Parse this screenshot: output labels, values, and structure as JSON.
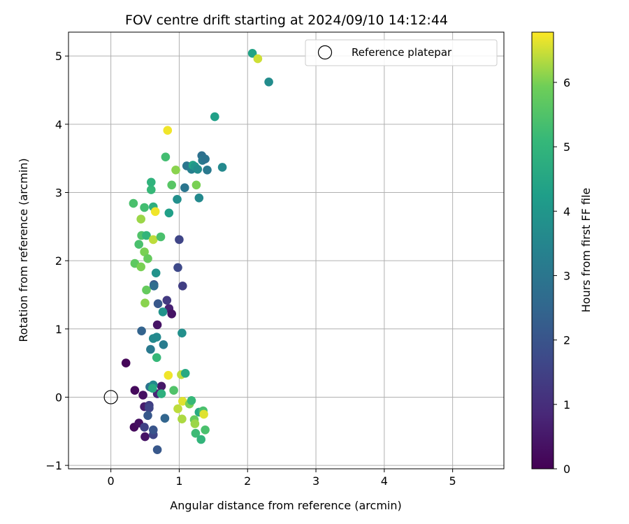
{
  "chart_data": {
    "type": "scatter",
    "title": "FOV centre drift starting at 2024/09/10 14:12:44",
    "xlabel": "Angular distance from reference (arcmin)",
    "ylabel": "Rotation from reference (arcmin)",
    "xlim": [
      -0.62,
      5.75
    ],
    "ylim": [
      -1.05,
      5.35
    ],
    "xticks": [
      0,
      1,
      2,
      3,
      4,
      5
    ],
    "yticks": [
      -1,
      0,
      1,
      2,
      3,
      4,
      5
    ],
    "grid": true,
    "legend": {
      "placement": "top-right",
      "entries": [
        "Reference platepar"
      ]
    },
    "reference": {
      "x": 0,
      "y": 0
    },
    "colorbar": {
      "label": "Hours from first FF file",
      "range": [
        0,
        6.78
      ],
      "ticks": [
        0,
        1,
        2,
        3,
        4,
        5,
        6
      ],
      "colormap": "viridis"
    },
    "points": [
      {
        "x": 0.22,
        "y": 0.5,
        "h": 0.1
      },
      {
        "x": 0.35,
        "y": 0.1,
        "h": 0.2
      },
      {
        "x": 0.47,
        "y": 0.03,
        "h": 0.3
      },
      {
        "x": 0.49,
        "y": -0.14,
        "h": 0.6
      },
      {
        "x": 0.34,
        "y": -0.44,
        "h": 0.2
      },
      {
        "x": 0.41,
        "y": -0.38,
        "h": 0.3
      },
      {
        "x": 0.5,
        "y": -0.58,
        "h": 0.4
      },
      {
        "x": 0.49,
        "y": -0.44,
        "h": 1.5
      },
      {
        "x": 0.56,
        "y": -0.12,
        "h": 1.4
      },
      {
        "x": 0.56,
        "y": -0.16,
        "h": 1.6
      },
      {
        "x": 0.54,
        "y": -0.27,
        "h": 2.1
      },
      {
        "x": 0.62,
        "y": -0.55,
        "h": 1.6
      },
      {
        "x": 0.62,
        "y": -0.48,
        "h": 2.0
      },
      {
        "x": 0.68,
        "y": -0.77,
        "h": 2.1
      },
      {
        "x": 0.79,
        "y": -0.31,
        "h": 2.5
      },
      {
        "x": 0.68,
        "y": 0.05,
        "h": 0.8
      },
      {
        "x": 0.74,
        "y": 0.16,
        "h": 0.5
      },
      {
        "x": 0.57,
        "y": 0.15,
        "h": 2.9
      },
      {
        "x": 0.62,
        "y": 0.18,
        "h": 3.6
      },
      {
        "x": 0.61,
        "y": 0.13,
        "h": 4.6
      },
      {
        "x": 0.74,
        "y": 0.05,
        "h": 4.8
      },
      {
        "x": 0.84,
        "y": 0.32,
        "h": 6.7
      },
      {
        "x": 0.92,
        "y": 0.1,
        "h": 5.5
      },
      {
        "x": 1.03,
        "y": 0.33,
        "h": 6.4
      },
      {
        "x": 1.09,
        "y": 0.35,
        "h": 4.6
      },
      {
        "x": 0.98,
        "y": -0.17,
        "h": 6.4
      },
      {
        "x": 1.05,
        "y": -0.06,
        "h": 6.6
      },
      {
        "x": 1.04,
        "y": -0.32,
        "h": 6.3
      },
      {
        "x": 1.15,
        "y": -0.1,
        "h": 6.0
      },
      {
        "x": 1.18,
        "y": -0.05,
        "h": 5.1
      },
      {
        "x": 1.22,
        "y": -0.33,
        "h": 5.8
      },
      {
        "x": 1.23,
        "y": -0.39,
        "h": 6.2
      },
      {
        "x": 1.24,
        "y": -0.53,
        "h": 5.2
      },
      {
        "x": 1.29,
        "y": -0.22,
        "h": 4.6
      },
      {
        "x": 1.32,
        "y": -0.62,
        "h": 5.0
      },
      {
        "x": 1.35,
        "y": -0.2,
        "h": 5.4
      },
      {
        "x": 1.36,
        "y": -0.25,
        "h": 6.6
      },
      {
        "x": 1.38,
        "y": -0.48,
        "h": 5.4
      },
      {
        "x": 0.45,
        "y": 0.97,
        "h": 2.4
      },
      {
        "x": 0.58,
        "y": 0.7,
        "h": 3.1
      },
      {
        "x": 0.62,
        "y": 0.86,
        "h": 3.6
      },
      {
        "x": 0.67,
        "y": 0.88,
        "h": 3.6
      },
      {
        "x": 0.67,
        "y": 0.58,
        "h": 5.1
      },
      {
        "x": 0.77,
        "y": 0.77,
        "h": 3.2
      },
      {
        "x": 0.68,
        "y": 1.06,
        "h": 0.4
      },
      {
        "x": 0.85,
        "y": 1.3,
        "h": 0.7
      },
      {
        "x": 0.89,
        "y": 1.22,
        "h": 0.4
      },
      {
        "x": 0.82,
        "y": 1.42,
        "h": 1.3
      },
      {
        "x": 0.69,
        "y": 1.37,
        "h": 2.1
      },
      {
        "x": 0.76,
        "y": 1.25,
        "h": 3.9
      },
      {
        "x": 0.63,
        "y": 1.65,
        "h": 2.1
      },
      {
        "x": 0.63,
        "y": 1.63,
        "h": 2.7
      },
      {
        "x": 0.52,
        "y": 1.57,
        "h": 5.8
      },
      {
        "x": 0.5,
        "y": 1.38,
        "h": 6.1
      },
      {
        "x": 1.05,
        "y": 1.63,
        "h": 1.4
      },
      {
        "x": 1.04,
        "y": 0.94,
        "h": 3.8
      },
      {
        "x": 0.35,
        "y": 1.96,
        "h": 5.7
      },
      {
        "x": 0.44,
        "y": 1.91,
        "h": 6.0
      },
      {
        "x": 0.49,
        "y": 2.13,
        "h": 6.0
      },
      {
        "x": 0.54,
        "y": 2.03,
        "h": 5.8
      },
      {
        "x": 0.41,
        "y": 2.24,
        "h": 5.4
      },
      {
        "x": 0.66,
        "y": 1.82,
        "h": 3.9
      },
      {
        "x": 0.98,
        "y": 1.9,
        "h": 1.7
      },
      {
        "x": 1.0,
        "y": 2.31,
        "h": 1.6
      },
      {
        "x": 0.45,
        "y": 2.37,
        "h": 5.5
      },
      {
        "x": 0.52,
        "y": 2.37,
        "h": 5.0
      },
      {
        "x": 0.62,
        "y": 2.31,
        "h": 6.4
      },
      {
        "x": 0.73,
        "y": 2.35,
        "h": 5.4
      },
      {
        "x": 0.44,
        "y": 2.61,
        "h": 6.2
      },
      {
        "x": 0.49,
        "y": 2.78,
        "h": 5.3
      },
      {
        "x": 0.33,
        "y": 2.84,
        "h": 5.4
      },
      {
        "x": 0.62,
        "y": 2.79,
        "h": 4.8
      },
      {
        "x": 0.65,
        "y": 2.72,
        "h": 6.7
      },
      {
        "x": 0.85,
        "y": 2.7,
        "h": 4.3
      },
      {
        "x": 0.59,
        "y": 3.04,
        "h": 5.1
      },
      {
        "x": 0.59,
        "y": 3.15,
        "h": 4.9
      },
      {
        "x": 0.89,
        "y": 3.11,
        "h": 5.6
      },
      {
        "x": 0.97,
        "y": 2.9,
        "h": 3.8
      },
      {
        "x": 1.08,
        "y": 3.07,
        "h": 3.0
      },
      {
        "x": 1.25,
        "y": 3.11,
        "h": 6.0
      },
      {
        "x": 1.29,
        "y": 2.92,
        "h": 3.6
      },
      {
        "x": 0.8,
        "y": 3.52,
        "h": 5.3
      },
      {
        "x": 0.95,
        "y": 3.33,
        "h": 6.1
      },
      {
        "x": 1.11,
        "y": 3.39,
        "h": 3.0
      },
      {
        "x": 1.18,
        "y": 3.34,
        "h": 3.3
      },
      {
        "x": 1.2,
        "y": 3.4,
        "h": 4.4
      },
      {
        "x": 1.23,
        "y": 3.38,
        "h": 4.0
      },
      {
        "x": 1.27,
        "y": 3.34,
        "h": 3.7
      },
      {
        "x": 1.33,
        "y": 3.54,
        "h": 2.8
      },
      {
        "x": 1.34,
        "y": 3.47,
        "h": 3.1
      },
      {
        "x": 1.38,
        "y": 3.49,
        "h": 2.9
      },
      {
        "x": 1.41,
        "y": 3.33,
        "h": 3.1
      },
      {
        "x": 1.63,
        "y": 3.37,
        "h": 3.6
      },
      {
        "x": 0.83,
        "y": 3.91,
        "h": 6.7
      },
      {
        "x": 1.52,
        "y": 4.11,
        "h": 4.3
      },
      {
        "x": 2.07,
        "y": 5.04,
        "h": 4.4
      },
      {
        "x": 2.15,
        "y": 4.96,
        "h": 6.5
      },
      {
        "x": 2.31,
        "y": 4.62,
        "h": 3.7
      }
    ]
  }
}
